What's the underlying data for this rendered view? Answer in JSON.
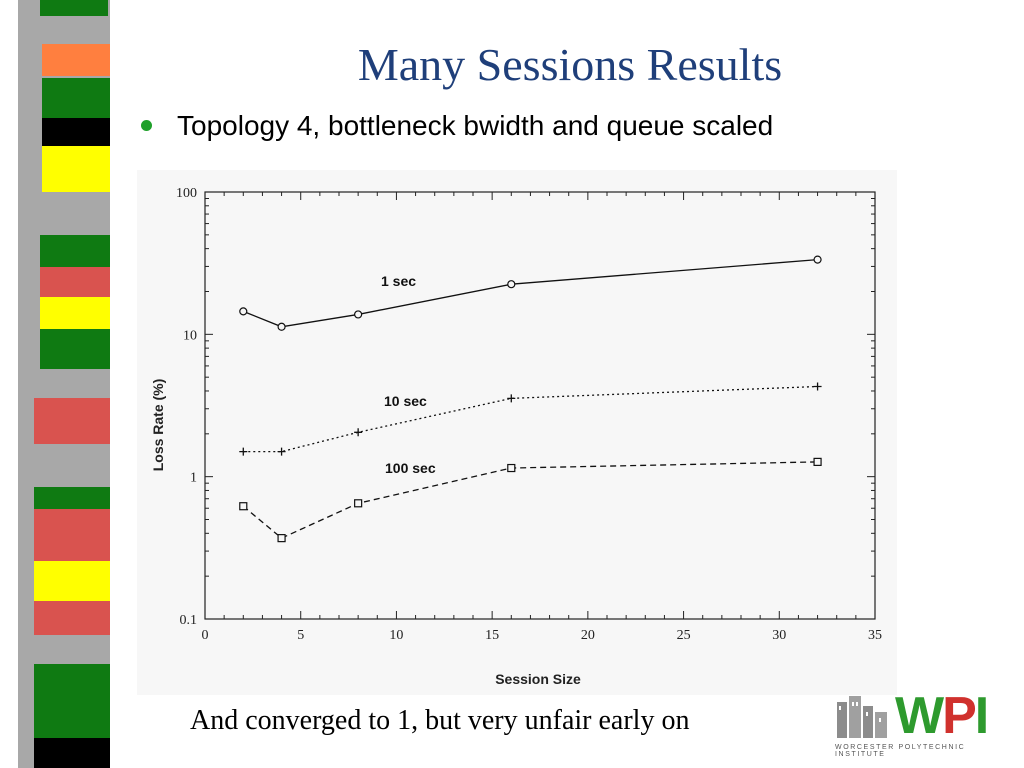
{
  "slide": {
    "title": "Many Sessions Results",
    "bullet": "Topology 4, bottleneck bwidth and queue scaled",
    "caption": "And converged to 1, but very unfair early on"
  },
  "logo": {
    "letters_w": "W",
    "letters_i": "I",
    "letters_p": "P",
    "subtitle": "WORCESTER POLYTECHNIC INSTITUTE"
  },
  "colors": {
    "title": "#1f3f7a",
    "bullet": "#1fa02a",
    "stripe_gray": "#a8a8a8",
    "stripe_green": "#0f7a12",
    "stripe_red": "#d9534f",
    "stripe_yellow": "#ffff00",
    "stripe_orange": "#ff7f3f",
    "stripe_black": "#000000"
  },
  "chart_data": {
    "type": "line",
    "xlabel": "Session Size",
    "ylabel": "Loss Rate (%)",
    "xlim": [
      0,
      35
    ],
    "ylim": [
      0.1,
      100
    ],
    "yscale": "log",
    "xticks": [
      "0",
      "5",
      "10",
      "15",
      "20",
      "25",
      "30",
      "35"
    ],
    "yticks": [
      "0.1",
      "1",
      "10",
      "100"
    ],
    "series": [
      {
        "name": "1 sec",
        "marker": "circle",
        "linestyle": "solid",
        "x": [
          2,
          4,
          8,
          16,
          32
        ],
        "y": [
          14.5,
          11.3,
          13.8,
          22.5,
          33.5
        ]
      },
      {
        "name": "10 sec",
        "marker": "plus",
        "linestyle": "dotted",
        "x": [
          2,
          4,
          8,
          16,
          32
        ],
        "y": [
          1.5,
          1.5,
          2.05,
          3.55,
          4.3
        ]
      },
      {
        "name": "100 sec",
        "marker": "square",
        "linestyle": "dashed",
        "x": [
          2,
          4,
          8,
          16,
          32
        ],
        "y": [
          0.62,
          0.37,
          0.65,
          1.15,
          1.27
        ]
      }
    ]
  }
}
